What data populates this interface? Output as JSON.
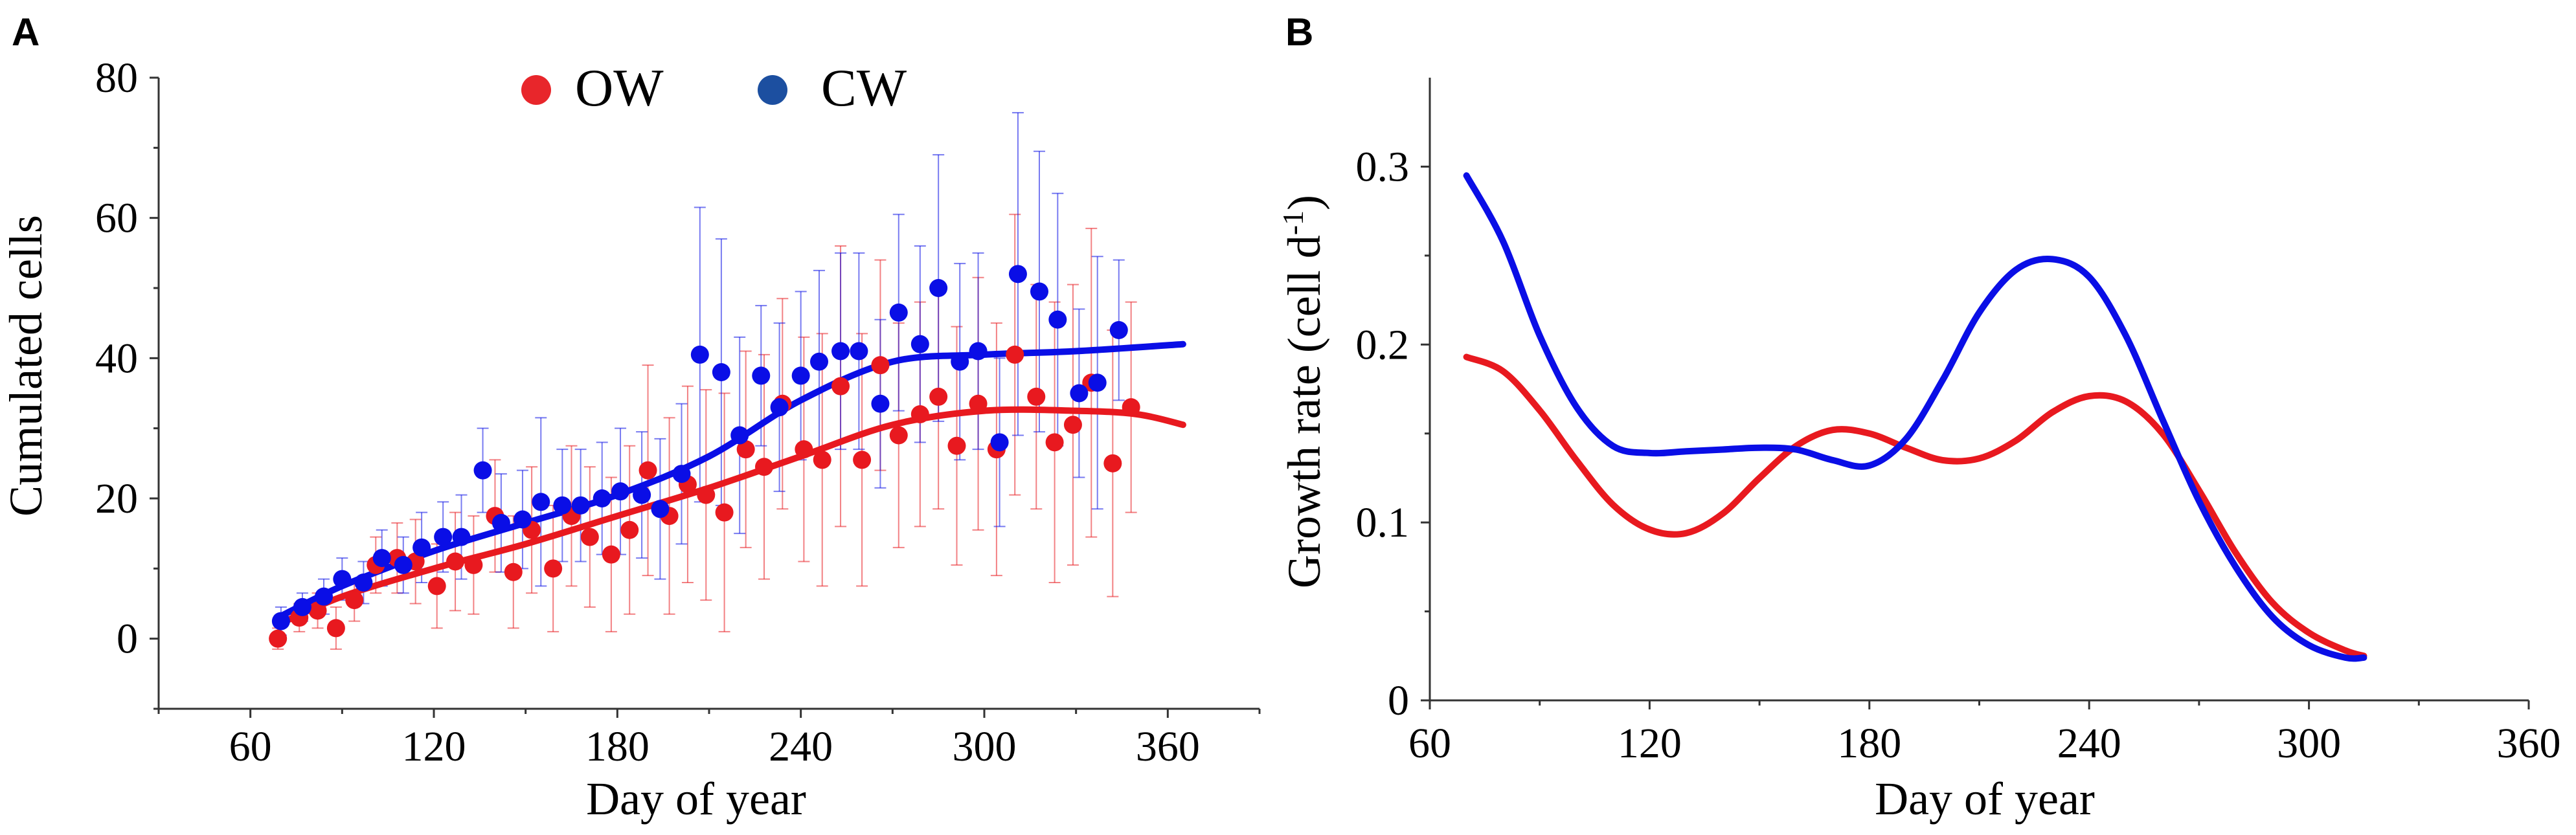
{
  "colors": {
    "ow": "#e8191f",
    "cw": "#0a0ee6",
    "ow_legend": "#e8262b",
    "cw_legend": "#1c4fa0",
    "axis": "#333333"
  },
  "panels": [
    {
      "label": "A",
      "chart_data": {
        "type": "scatter",
        "xlabel": "Day of year",
        "ylabel": "Cumulated cells",
        "xlim": [
          30,
          390
        ],
        "ylim": [
          -10,
          80
        ],
        "xticks": [
          60,
          120,
          180,
          240,
          300,
          360
        ],
        "yticks": [
          0,
          20,
          40,
          60,
          80
        ],
        "grid": false,
        "legend": {
          "position": "top-center",
          "entries": [
            "OW",
            "CW"
          ]
        },
        "series": [
          {
            "name": "OW",
            "color_key": "ow",
            "points": [
              {
                "x": 69,
                "y": 0,
                "err": 1.5
              },
              {
                "x": 76,
                "y": 3,
                "err": 2
              },
              {
                "x": 82,
                "y": 4,
                "err": 2.5
              },
              {
                "x": 88,
                "y": 1.5,
                "err": 3
              },
              {
                "x": 94,
                "y": 5.5,
                "err": 3
              },
              {
                "x": 101,
                "y": 10.5,
                "err": 4
              },
              {
                "x": 108,
                "y": 11.5,
                "err": 5
              },
              {
                "x": 114,
                "y": 11,
                "err": 6
              },
              {
                "x": 121,
                "y": 7.5,
                "err": 6
              },
              {
                "x": 127,
                "y": 11,
                "err": 7
              },
              {
                "x": 133,
                "y": 10.5,
                "err": 7
              },
              {
                "x": 140,
                "y": 17.5,
                "err": 8
              },
              {
                "x": 146,
                "y": 9.5,
                "err": 8
              },
              {
                "x": 152,
                "y": 15.5,
                "err": 9
              },
              {
                "x": 159,
                "y": 10,
                "err": 9
              },
              {
                "x": 165,
                "y": 17.5,
                "err": 10
              },
              {
                "x": 171,
                "y": 14.5,
                "err": 10
              },
              {
                "x": 178,
                "y": 12,
                "err": 11
              },
              {
                "x": 184,
                "y": 15.5,
                "err": 12
              },
              {
                "x": 190,
                "y": 24,
                "err": 15
              },
              {
                "x": 197,
                "y": 17.5,
                "err": 14
              },
              {
                "x": 203,
                "y": 22,
                "err": 14
              },
              {
                "x": 209,
                "y": 20.5,
                "err": 15
              },
              {
                "x": 215,
                "y": 18,
                "err": 17
              },
              {
                "x": 222,
                "y": 27,
                "err": 14
              },
              {
                "x": 228,
                "y": 24.5,
                "err": 16
              },
              {
                "x": 234,
                "y": 33.5,
                "err": 15
              },
              {
                "x": 241,
                "y": 27,
                "err": 16
              },
              {
                "x": 247,
                "y": 25.5,
                "err": 18
              },
              {
                "x": 253,
                "y": 36,
                "err": 20
              },
              {
                "x": 260,
                "y": 25.5,
                "err": 18
              },
              {
                "x": 266,
                "y": 39,
                "err": 15
              },
              {
                "x": 272,
                "y": 29,
                "err": 16
              },
              {
                "x": 279,
                "y": 32,
                "err": 16
              },
              {
                "x": 285,
                "y": 34.5,
                "err": 16
              },
              {
                "x": 291,
                "y": 27.5,
                "err": 17
              },
              {
                "x": 298,
                "y": 33.5,
                "err": 18
              },
              {
                "x": 304,
                "y": 27,
                "err": 18
              },
              {
                "x": 310,
                "y": 40.5,
                "err": 20
              },
              {
                "x": 317,
                "y": 34.5,
                "err": 16
              },
              {
                "x": 323,
                "y": 28,
                "err": 20
              },
              {
                "x": 329,
                "y": 30.5,
                "err": 20
              },
              {
                "x": 335,
                "y": 36.5,
                "err": 22
              },
              {
                "x": 342,
                "y": 25,
                "err": 19
              },
              {
                "x": 348,
                "y": 33,
                "err": 15
              }
            ],
            "fit": [
              {
                "x": 69,
                "y": 2
              },
              {
                "x": 90,
                "y": 6
              },
              {
                "x": 120,
                "y": 10
              },
              {
                "x": 150,
                "y": 13.5
              },
              {
                "x": 180,
                "y": 17.5
              },
              {
                "x": 210,
                "y": 21.5
              },
              {
                "x": 240,
                "y": 26
              },
              {
                "x": 270,
                "y": 30.5
              },
              {
                "x": 300,
                "y": 32.5
              },
              {
                "x": 330,
                "y": 32.5
              },
              {
                "x": 350,
                "y": 32
              },
              {
                "x": 365,
                "y": 30.5
              }
            ]
          },
          {
            "name": "CW",
            "color_key": "cw",
            "points": [
              {
                "x": 70,
                "y": 2.5,
                "err": 2
              },
              {
                "x": 77,
                "y": 4.5,
                "err": 2
              },
              {
                "x": 84,
                "y": 6,
                "err": 2.5
              },
              {
                "x": 90,
                "y": 8.5,
                "err": 3
              },
              {
                "x": 97,
                "y": 8,
                "err": 3
              },
              {
                "x": 103,
                "y": 11.5,
                "err": 4
              },
              {
                "x": 110,
                "y": 10.5,
                "err": 4
              },
              {
                "x": 116,
                "y": 13,
                "err": 5
              },
              {
                "x": 123,
                "y": 14.5,
                "err": 5
              },
              {
                "x": 129,
                "y": 14.5,
                "err": 6
              },
              {
                "x": 136,
                "y": 24,
                "err": 6
              },
              {
                "x": 142,
                "y": 16.5,
                "err": 7
              },
              {
                "x": 149,
                "y": 17,
                "err": 7
              },
              {
                "x": 155,
                "y": 19.5,
                "err": 12
              },
              {
                "x": 162,
                "y": 19,
                "err": 8
              },
              {
                "x": 168,
                "y": 19,
                "err": 8
              },
              {
                "x": 175,
                "y": 20,
                "err": 8
              },
              {
                "x": 181,
                "y": 21,
                "err": 9
              },
              {
                "x": 188,
                "y": 20.5,
                "err": 9
              },
              {
                "x": 194,
                "y": 18.5,
                "err": 10
              },
              {
                "x": 201,
                "y": 23.5,
                "err": 10
              },
              {
                "x": 207,
                "y": 40.5,
                "err": 21
              },
              {
                "x": 214,
                "y": 38,
                "err": 19
              },
              {
                "x": 220,
                "y": 29,
                "err": 14
              },
              {
                "x": 227,
                "y": 37.5,
                "err": 10
              },
              {
                "x": 233,
                "y": 33,
                "err": 12
              },
              {
                "x": 240,
                "y": 37.5,
                "err": 12
              },
              {
                "x": 246,
                "y": 39.5,
                "err": 13
              },
              {
                "x": 253,
                "y": 41,
                "err": 14
              },
              {
                "x": 259,
                "y": 41,
                "err": 14
              },
              {
                "x": 266,
                "y": 33.5,
                "err": 12
              },
              {
                "x": 272,
                "y": 46.5,
                "err": 14
              },
              {
                "x": 279,
                "y": 42,
                "err": 14
              },
              {
                "x": 285,
                "y": 50,
                "err": 19
              },
              {
                "x": 292,
                "y": 39.5,
                "err": 14
              },
              {
                "x": 298,
                "y": 41,
                "err": 14
              },
              {
                "x": 305,
                "y": 28,
                "err": 12
              },
              {
                "x": 311,
                "y": 52,
                "err": 23
              },
              {
                "x": 318,
                "y": 49.5,
                "err": 20
              },
              {
                "x": 324,
                "y": 45.5,
                "err": 18
              },
              {
                "x": 331,
                "y": 35,
                "err": 12
              },
              {
                "x": 337,
                "y": 36.5,
                "err": 18
              },
              {
                "x": 344,
                "y": 44,
                "err": 10
              }
            ],
            "fit": [
              {
                "x": 69,
                "y": 3
              },
              {
                "x": 90,
                "y": 7.5
              },
              {
                "x": 120,
                "y": 12.5
              },
              {
                "x": 150,
                "y": 16.5
              },
              {
                "x": 180,
                "y": 20.5
              },
              {
                "x": 210,
                "y": 26
              },
              {
                "x": 240,
                "y": 34
              },
              {
                "x": 270,
                "y": 39.5
              },
              {
                "x": 300,
                "y": 40.5
              },
              {
                "x": 330,
                "y": 41
              },
              {
                "x": 365,
                "y": 42
              }
            ]
          }
        ]
      }
    },
    {
      "label": "B",
      "chart_data": {
        "type": "line",
        "xlabel": "Day of year",
        "ylabel": "Growth rate (cell d",
        "ylabel_sup": "-1",
        "ylabel_end": ")",
        "xlim": [
          60,
          360
        ],
        "ylim": [
          0,
          0.35
        ],
        "xticks": [
          60,
          120,
          180,
          240,
          300,
          360
        ],
        "yticks": [
          0,
          0.1,
          0.2,
          0.3
        ],
        "ytick_labels": [
          "0",
          "0.1",
          "0.2",
          "0.3"
        ],
        "grid": false,
        "series": [
          {
            "name": "OW",
            "color_key": "ow",
            "points": [
              {
                "x": 70,
                "y": 0.193
              },
              {
                "x": 80,
                "y": 0.185
              },
              {
                "x": 90,
                "y": 0.163
              },
              {
                "x": 100,
                "y": 0.135
              },
              {
                "x": 110,
                "y": 0.11
              },
              {
                "x": 120,
                "y": 0.096
              },
              {
                "x": 130,
                "y": 0.094
              },
              {
                "x": 140,
                "y": 0.105
              },
              {
                "x": 150,
                "y": 0.125
              },
              {
                "x": 160,
                "y": 0.143
              },
              {
                "x": 170,
                "y": 0.152
              },
              {
                "x": 180,
                "y": 0.15
              },
              {
                "x": 190,
                "y": 0.142
              },
              {
                "x": 200,
                "y": 0.135
              },
              {
                "x": 210,
                "y": 0.136
              },
              {
                "x": 220,
                "y": 0.146
              },
              {
                "x": 230,
                "y": 0.162
              },
              {
                "x": 240,
                "y": 0.171
              },
              {
                "x": 250,
                "y": 0.168
              },
              {
                "x": 260,
                "y": 0.15
              },
              {
                "x": 270,
                "y": 0.118
              },
              {
                "x": 280,
                "y": 0.083
              },
              {
                "x": 290,
                "y": 0.055
              },
              {
                "x": 300,
                "y": 0.038
              },
              {
                "x": 310,
                "y": 0.028
              },
              {
                "x": 315,
                "y": 0.025
              }
            ]
          },
          {
            "name": "CW",
            "color_key": "cw",
            "points": [
              {
                "x": 70,
                "y": 0.295
              },
              {
                "x": 80,
                "y": 0.258
              },
              {
                "x": 90,
                "y": 0.205
              },
              {
                "x": 100,
                "y": 0.165
              },
              {
                "x": 110,
                "y": 0.143
              },
              {
                "x": 120,
                "y": 0.139
              },
              {
                "x": 130,
                "y": 0.14
              },
              {
                "x": 140,
                "y": 0.141
              },
              {
                "x": 150,
                "y": 0.142
              },
              {
                "x": 160,
                "y": 0.141
              },
              {
                "x": 170,
                "y": 0.135
              },
              {
                "x": 180,
                "y": 0.132
              },
              {
                "x": 190,
                "y": 0.147
              },
              {
                "x": 200,
                "y": 0.18
              },
              {
                "x": 210,
                "y": 0.218
              },
              {
                "x": 220,
                "y": 0.242
              },
              {
                "x": 230,
                "y": 0.248
              },
              {
                "x": 240,
                "y": 0.238
              },
              {
                "x": 250,
                "y": 0.205
              },
              {
                "x": 260,
                "y": 0.158
              },
              {
                "x": 270,
                "y": 0.112
              },
              {
                "x": 280,
                "y": 0.075
              },
              {
                "x": 290,
                "y": 0.047
              },
              {
                "x": 300,
                "y": 0.031
              },
              {
                "x": 310,
                "y": 0.024
              },
              {
                "x": 315,
                "y": 0.024
              }
            ]
          }
        ]
      }
    }
  ]
}
